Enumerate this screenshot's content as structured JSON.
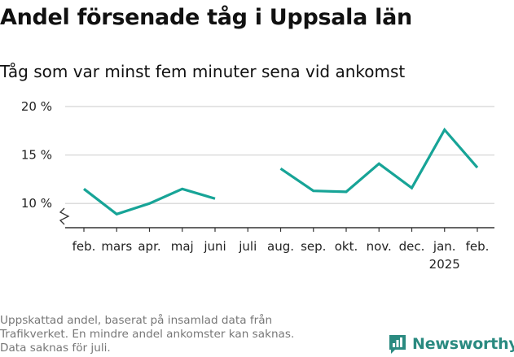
{
  "title": "Andel försenade tåg i Uppsala län",
  "subtitle": "Tåg som var minst fem minuter sena vid ankomst",
  "footnote": [
    "Uppskattad andel, baserat på insamlad data från",
    "Trafikverket. En mindre andel ankomster kan saknas.",
    "Data saknas för juli."
  ],
  "brand": {
    "name": "Newsworthy",
    "color": "#2a8a80"
  },
  "colors": {
    "line": "#17a497",
    "grid": "#dcdcdc",
    "axis": "#333333"
  },
  "chart_data": {
    "type": "line",
    "title": "Andel försenade tåg i Uppsala län",
    "subtitle": "Tåg som var minst fem minuter sena vid ankomst",
    "xlabel": "",
    "ylabel": "",
    "categories": [
      "feb.",
      "mars",
      "apr.",
      "maj",
      "juni",
      "juli",
      "aug.",
      "sep.",
      "okt.",
      "nov.",
      "dec.",
      "jan.",
      "feb."
    ],
    "year_label": {
      "category_index": 11,
      "text": "2025"
    },
    "series": [
      {
        "values": [
          11.5,
          8.9,
          10.0,
          11.5,
          10.5,
          null,
          13.6,
          11.3,
          11.2,
          14.1,
          11.6,
          17.6,
          13.7
        ]
      }
    ],
    "y_ticks": [
      10,
      15,
      20
    ],
    "y_tick_labels": [
      "10 %",
      "15 %",
      "20 %"
    ],
    "ylim": [
      7.5,
      20
    ],
    "axis_break": true,
    "grid": true,
    "legend": "none"
  }
}
